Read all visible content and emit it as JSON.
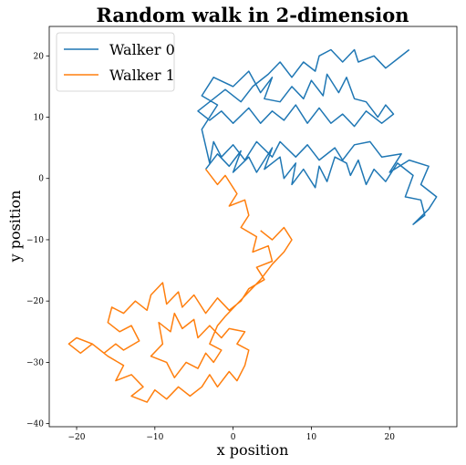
{
  "chart_data": {
    "type": "line",
    "title": "Random walk in 2-dimension",
    "xlabel": "x position",
    "ylabel": "y position",
    "xlim": [
      -23.5,
      28.6
    ],
    "ylim": [
      -40.5,
      24.8
    ],
    "xticks": [
      -20,
      -10,
      0,
      10,
      20
    ],
    "yticks": [
      -40,
      -30,
      -20,
      -10,
      0,
      10,
      20
    ],
    "grid": false,
    "legend_position": "top-left",
    "series": [
      {
        "name": "Walker 0",
        "color": "#1f77b4",
        "points": [
          [
            -3.5,
            1.5
          ],
          [
            -2,
            4
          ],
          [
            -0.5,
            2
          ],
          [
            1,
            4.5
          ],
          [
            0,
            1
          ],
          [
            2,
            3.5
          ],
          [
            3,
            1
          ],
          [
            5,
            5
          ],
          [
            4,
            1.5
          ],
          [
            6,
            3.5
          ],
          [
            6.5,
            0
          ],
          [
            8,
            2.5
          ],
          [
            7.5,
            -1
          ],
          [
            9,
            1.5
          ],
          [
            10.5,
            -1.5
          ],
          [
            11,
            2
          ],
          [
            12,
            -0.5
          ],
          [
            13,
            3.5
          ],
          [
            14.5,
            2.5
          ],
          [
            15,
            0.5
          ],
          [
            16,
            3
          ],
          [
            17,
            -1
          ],
          [
            18,
            1.5
          ],
          [
            19.5,
            -0.5
          ],
          [
            21,
            2.5
          ],
          [
            23,
            0.5
          ],
          [
            22,
            -3
          ],
          [
            24,
            -3.5
          ],
          [
            24.5,
            -6
          ],
          [
            23,
            -7.5
          ],
          [
            25,
            -5
          ],
          [
            26,
            -3
          ],
          [
            24,
            -1
          ],
          [
            25,
            2
          ],
          [
            22.5,
            3
          ],
          [
            20,
            1
          ],
          [
            21.5,
            4
          ],
          [
            19,
            3.5
          ],
          [
            17.5,
            6
          ],
          [
            15.5,
            5.5
          ],
          [
            14,
            3
          ],
          [
            13,
            5
          ],
          [
            11,
            3
          ],
          [
            9.5,
            5.5
          ],
          [
            8,
            3.5
          ],
          [
            6,
            6
          ],
          [
            5,
            3.5
          ],
          [
            3,
            6
          ],
          [
            1.5,
            3
          ],
          [
            0,
            5.5
          ],
          [
            -1.5,
            3.5
          ],
          [
            -2.5,
            6
          ],
          [
            -3,
            2.5
          ],
          [
            -4,
            8
          ],
          [
            -3,
            10
          ],
          [
            -2,
            12
          ],
          [
            -4,
            13.5
          ],
          [
            -2.5,
            16.5
          ],
          [
            0,
            15
          ],
          [
            2,
            17.5
          ],
          [
            3.5,
            14
          ],
          [
            5,
            16.5
          ],
          [
            4,
            13
          ],
          [
            6,
            12.5
          ],
          [
            7.5,
            15
          ],
          [
            9,
            13
          ],
          [
            10,
            16
          ],
          [
            11.5,
            13.5
          ],
          [
            12,
            17
          ],
          [
            13.5,
            14
          ],
          [
            14.5,
            16.5
          ],
          [
            15.5,
            13
          ],
          [
            17,
            12.5
          ],
          [
            18.5,
            10
          ],
          [
            19.5,
            12
          ],
          [
            20.5,
            10.5
          ],
          [
            19,
            9
          ],
          [
            17,
            11
          ],
          [
            15.5,
            8.5
          ],
          [
            14,
            10.5
          ],
          [
            12.5,
            9
          ],
          [
            11,
            11.5
          ],
          [
            9.5,
            9
          ],
          [
            8,
            12
          ],
          [
            6.5,
            9.5
          ],
          [
            5,
            11
          ],
          [
            3.5,
            9
          ],
          [
            2,
            11.5
          ],
          [
            0,
            9
          ],
          [
            -1.5,
            11
          ],
          [
            -3,
            9.5
          ],
          [
            -4.5,
            11
          ],
          [
            -2.5,
            13
          ],
          [
            -1,
            14.5
          ],
          [
            1,
            12.5
          ],
          [
            2.5,
            15
          ],
          [
            4.5,
            17
          ],
          [
            6,
            19
          ],
          [
            7.5,
            16.5
          ],
          [
            9,
            19
          ],
          [
            10.5,
            17.5
          ],
          [
            11,
            20
          ],
          [
            12.5,
            21
          ],
          [
            14,
            19
          ],
          [
            15.5,
            21
          ],
          [
            16,
            19
          ],
          [
            18,
            20
          ],
          [
            19.5,
            18
          ],
          [
            21,
            19.5
          ],
          [
            22.5,
            21
          ]
        ]
      },
      {
        "name": "Walker 1",
        "color": "#ff7f0e",
        "points": [
          [
            -3.5,
            1.5
          ],
          [
            -2,
            -1
          ],
          [
            -1,
            0.5
          ],
          [
            0.5,
            -2.5
          ],
          [
            -0.5,
            -4.5
          ],
          [
            1.5,
            -3.5
          ],
          [
            2,
            -6
          ],
          [
            1,
            -8
          ],
          [
            3,
            -9.5
          ],
          [
            2.5,
            -12
          ],
          [
            4.5,
            -11
          ],
          [
            5,
            -13.5
          ],
          [
            3,
            -14.5
          ],
          [
            4,
            -16.5
          ],
          [
            2,
            -18
          ],
          [
            1,
            -20
          ],
          [
            -0.5,
            -21.5
          ],
          [
            -2,
            -19.5
          ],
          [
            -3.5,
            -22
          ],
          [
            -5,
            -19
          ],
          [
            -6.5,
            -21
          ],
          [
            -7,
            -18.5
          ],
          [
            -8.5,
            -20.5
          ],
          [
            -9,
            -17
          ],
          [
            -10.5,
            -19
          ],
          [
            -11,
            -21.5
          ],
          [
            -12.5,
            -20
          ],
          [
            -14,
            -22
          ],
          [
            -15.5,
            -21
          ],
          [
            -16,
            -23.5
          ],
          [
            -14.5,
            -25
          ],
          [
            -13,
            -24
          ],
          [
            -12,
            -26.5
          ],
          [
            -14,
            -28
          ],
          [
            -15,
            -27
          ],
          [
            -16.5,
            -28.5
          ],
          [
            -18,
            -27
          ],
          [
            -19.5,
            -28.5
          ],
          [
            -21,
            -27
          ],
          [
            -20,
            -26
          ],
          [
            -18,
            -27
          ],
          [
            -16,
            -29
          ],
          [
            -14,
            -30.5
          ],
          [
            -15,
            -33
          ],
          [
            -13,
            -32
          ],
          [
            -11.5,
            -34
          ],
          [
            -13,
            -35.5
          ],
          [
            -11,
            -36.5
          ],
          [
            -10,
            -34.5
          ],
          [
            -8.5,
            -36
          ],
          [
            -7,
            -34
          ],
          [
            -5.5,
            -35.5
          ],
          [
            -4,
            -34
          ],
          [
            -3,
            -32
          ],
          [
            -2,
            -34
          ],
          [
            -0.5,
            -31.5
          ],
          [
            0.5,
            -33
          ],
          [
            1.5,
            -30.5
          ],
          [
            2,
            -28
          ],
          [
            0.5,
            -27
          ],
          [
            1.5,
            -25
          ],
          [
            -0.5,
            -24.5
          ],
          [
            -1.5,
            -26
          ],
          [
            -3,
            -24
          ],
          [
            -4.5,
            -26
          ],
          [
            -5,
            -23
          ],
          [
            -6.5,
            -24.5
          ],
          [
            -7.5,
            -22
          ],
          [
            -8,
            -25
          ],
          [
            -9.5,
            -23.5
          ],
          [
            -9,
            -27
          ],
          [
            -10.5,
            -29
          ],
          [
            -8.5,
            -30
          ],
          [
            -7.5,
            -32.5
          ],
          [
            -6,
            -30
          ],
          [
            -4.5,
            -31
          ],
          [
            -3.5,
            -28.5
          ],
          [
            -2.5,
            -30
          ],
          [
            -1.5,
            -28
          ],
          [
            -3,
            -27
          ],
          [
            -2,
            -24
          ],
          [
            -1,
            -22.5
          ],
          [
            0.5,
            -20.5
          ],
          [
            2,
            -18.5
          ],
          [
            3.5,
            -16.5
          ],
          [
            5,
            -14
          ],
          [
            6.5,
            -12
          ],
          [
            7.5,
            -10
          ],
          [
            6.5,
            -8
          ],
          [
            5,
            -10
          ],
          [
            3.5,
            -8.5
          ]
        ]
      }
    ]
  }
}
